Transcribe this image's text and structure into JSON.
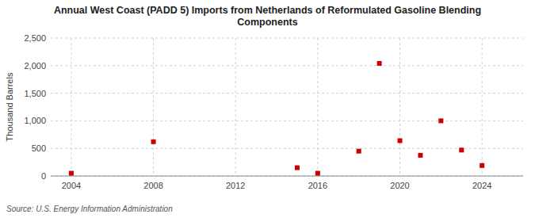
{
  "chart_data": {
    "type": "scatter",
    "title": "Annual West Coast (PADD 5) Imports from Netherlands of Reformulated Gasoline Blending\nComponents",
    "ylabel": "Thousand Barrels",
    "source": "Source: U.S. Energy Information Administration",
    "x": [
      2004,
      2008,
      2015,
      2016,
      2018,
      2019,
      2020,
      2021,
      2022,
      2023,
      2024
    ],
    "values": [
      50,
      621,
      150,
      50,
      450,
      2040,
      640,
      375,
      1000,
      470,
      190
    ],
    "color": "#cc0000",
    "marker": "square",
    "xlim": [
      2003,
      2026
    ],
    "ylim": [
      0,
      2500
    ],
    "xticks": [
      2004,
      2008,
      2012,
      2016,
      2020,
      2024
    ],
    "yticks": [
      0,
      500,
      {
        "value": 1000,
        "label": "1,000"
      },
      {
        "value": 1500,
        "label": "1,500"
      },
      {
        "value": 2000,
        "label": "2,000"
      },
      {
        "value": 2500,
        "label": "2,500"
      }
    ],
    "grid": true
  }
}
